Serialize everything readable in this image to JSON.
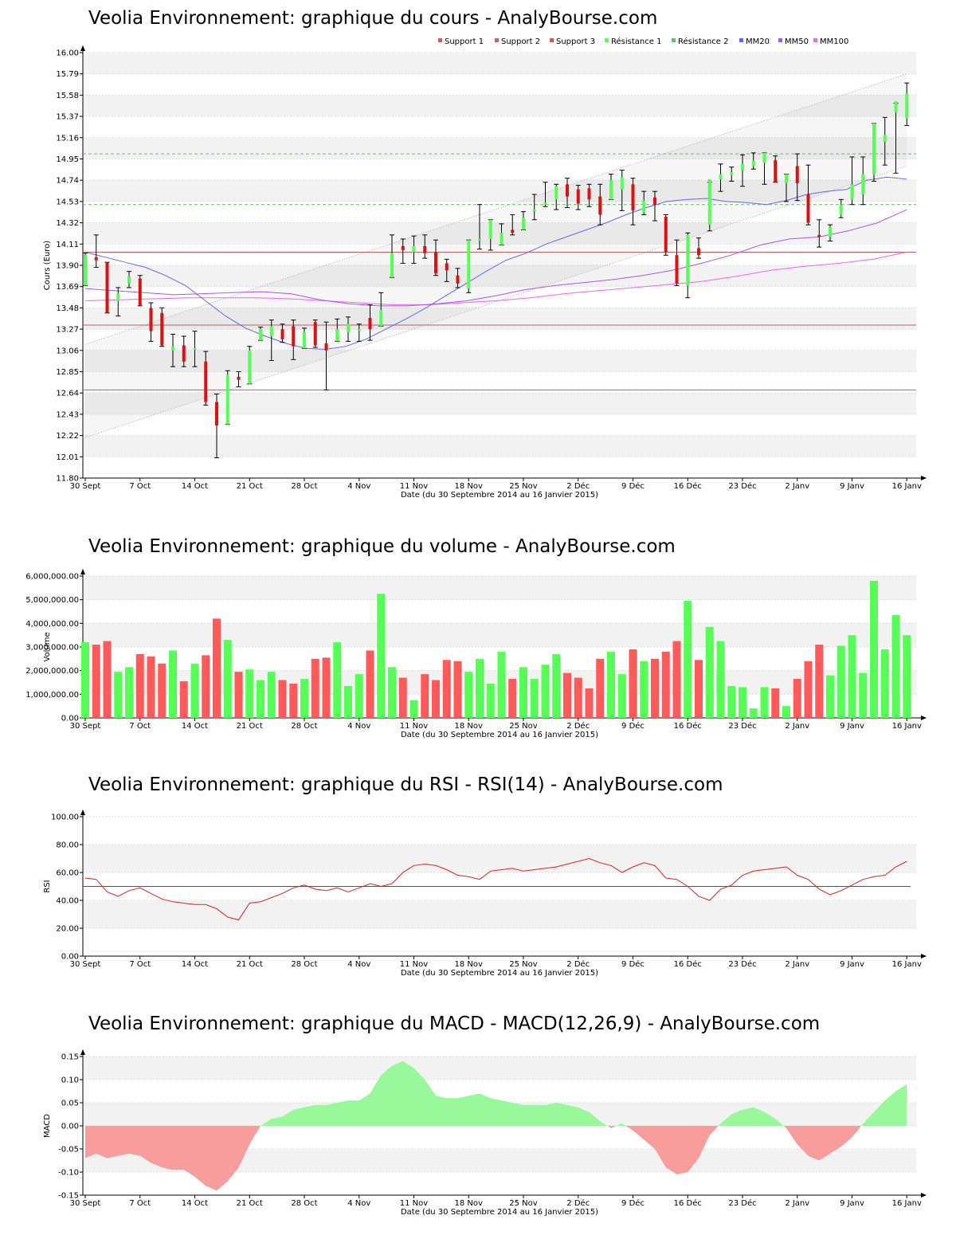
{
  "x_ticks": [
    "30 Sept",
    "7 Oct",
    "14 Oct",
    "21 Oct",
    "28 Oct",
    "4 Nov",
    "11 Nov",
    "18 Nov",
    "25 Nov",
    "2 Déc",
    "9 Déc",
    "16 Déc",
    "23 Déc",
    "2 Janv",
    "9 Janv",
    "16 Janv"
  ],
  "x_label": "Date (du 30 Septembre 2014 au 16 Janvier 2015)",
  "colors": {
    "up": "#55ff55",
    "down": "#ff5a5a",
    "support": "#c06060",
    "resistance": "#66bb66",
    "mm20": "#6666ee",
    "mm50": "#aa55ee",
    "mm100": "#ee66ee",
    "rsi": "#dd2222",
    "macd_pos": "#99f899",
    "macd_neg": "#f89c9c"
  },
  "chart_data": [
    {
      "type": "candlestick",
      "title": "Veolia Environnement: graphique du cours - AnalyBourse.com",
      "ylabel": "Cours (Euro)",
      "ylim": [
        11.8,
        16.0
      ],
      "y_ticks": [
        "11.80",
        "12.01",
        "12.22",
        "12.43",
        "12.64",
        "12.85",
        "13.06",
        "13.27",
        "13.48",
        "13.69",
        "13.90",
        "14.11",
        "14.32",
        "14.53",
        "14.74",
        "14.95",
        "15.16",
        "15.37",
        "15.58",
        "15.79",
        "16.00"
      ],
      "legend": [
        "Support 1",
        "Support 2",
        "Support 3",
        "Résistance 1",
        "Résistance 2",
        "MM20",
        "MM50",
        "MM100"
      ],
      "supports": [
        14.03,
        13.31,
        12.67
      ],
      "resistances": [
        15.0,
        14.5
      ],
      "ohlc": [
        [
          13.7,
          14.02,
          13.7,
          14.0
        ],
        [
          13.98,
          14.2,
          13.88,
          13.95
        ],
        [
          13.93,
          13.93,
          13.43,
          13.43
        ],
        [
          13.55,
          13.68,
          13.4,
          13.62
        ],
        [
          13.72,
          13.84,
          13.68,
          13.79
        ],
        [
          13.77,
          13.8,
          13.5,
          13.5
        ],
        [
          13.48,
          13.53,
          13.15,
          13.25
        ],
        [
          13.43,
          13.48,
          13.1,
          13.11
        ],
        [
          13.06,
          13.22,
          12.9,
          13.1
        ],
        [
          13.11,
          13.2,
          12.9,
          12.95
        ],
        [
          13.07,
          13.25,
          12.9,
          13.08
        ],
        [
          12.95,
          13.05,
          12.52,
          12.55
        ],
        [
          12.55,
          12.63,
          12.0,
          12.32
        ],
        [
          12.33,
          12.86,
          12.33,
          12.82
        ],
        [
          12.8,
          12.85,
          12.7,
          12.77
        ],
        [
          12.73,
          13.1,
          12.73,
          13.06
        ],
        [
          13.16,
          13.29,
          13.16,
          13.27
        ],
        [
          13.2,
          13.36,
          12.96,
          13.3
        ],
        [
          13.27,
          13.32,
          13.14,
          13.17
        ],
        [
          13.3,
          13.36,
          12.97,
          13.1
        ],
        [
          13.08,
          13.28,
          13.08,
          13.24
        ],
        [
          13.34,
          13.36,
          13.09,
          13.11
        ],
        [
          13.13,
          13.34,
          12.67,
          13.06
        ],
        [
          13.15,
          13.37,
          13.15,
          13.27
        ],
        [
          13.24,
          13.39,
          13.15,
          13.32
        ],
        [
          13.27,
          13.32,
          13.15,
          13.27
        ],
        [
          13.38,
          13.51,
          13.16,
          13.27
        ],
        [
          13.3,
          13.63,
          13.3,
          13.46
        ],
        [
          13.78,
          14.2,
          13.78,
          14.02
        ],
        [
          14.09,
          14.16,
          13.92,
          14.05
        ],
        [
          14.03,
          14.19,
          13.92,
          14.09
        ],
        [
          14.09,
          14.2,
          13.97,
          14.02
        ],
        [
          14.03,
          14.15,
          13.8,
          13.82
        ],
        [
          13.92,
          13.96,
          13.74,
          13.85
        ],
        [
          13.8,
          13.87,
          13.68,
          13.72
        ],
        [
          13.67,
          14.15,
          13.63,
          14.15
        ],
        [
          14.15,
          14.5,
          14.06,
          14.16
        ],
        [
          14.16,
          14.35,
          14.05,
          14.35
        ],
        [
          14.1,
          14.31,
          14.1,
          14.22
        ],
        [
          14.25,
          14.4,
          14.2,
          14.22
        ],
        [
          14.25,
          14.43,
          14.25,
          14.37
        ],
        [
          14.45,
          14.6,
          14.35,
          14.45
        ],
        [
          14.5,
          14.72,
          14.48,
          14.52
        ],
        [
          14.55,
          14.7,
          14.45,
          14.68
        ],
        [
          14.7,
          14.76,
          14.47,
          14.58
        ],
        [
          14.65,
          14.69,
          14.45,
          14.51
        ],
        [
          14.66,
          14.7,
          14.48,
          14.55
        ],
        [
          14.58,
          14.7,
          14.3,
          14.4
        ],
        [
          14.55,
          14.8,
          14.55,
          14.74
        ],
        [
          14.65,
          14.84,
          14.44,
          14.77
        ],
        [
          14.7,
          14.76,
          14.3,
          14.44
        ],
        [
          14.42,
          14.63,
          14.4,
          14.54
        ],
        [
          14.57,
          14.63,
          14.34,
          14.5
        ],
        [
          14.38,
          14.4,
          14.0,
          14.03
        ],
        [
          14.0,
          14.15,
          13.7,
          13.72
        ],
        [
          13.7,
          14.22,
          13.58,
          14.2
        ],
        [
          14.07,
          14.17,
          13.97,
          14.0
        ],
        [
          14.3,
          14.72,
          14.24,
          14.75
        ],
        [
          14.75,
          14.9,
          14.63,
          14.8
        ],
        [
          14.79,
          14.87,
          14.73,
          14.82
        ],
        [
          14.84,
          14.99,
          14.68,
          14.9
        ],
        [
          14.88,
          15.01,
          14.85,
          14.93
        ],
        [
          14.91,
          15.01,
          14.7,
          15.01
        ],
        [
          14.94,
          14.98,
          14.72,
          14.72
        ],
        [
          14.71,
          14.8,
          14.53,
          14.8
        ],
        [
          14.88,
          15.0,
          14.54,
          14.71
        ],
        [
          14.6,
          14.89,
          14.3,
          14.32
        ],
        [
          14.2,
          14.35,
          14.08,
          14.18
        ],
        [
          14.18,
          14.3,
          14.14,
          14.28
        ],
        [
          14.4,
          14.55,
          14.37,
          14.5
        ],
        [
          14.55,
          14.97,
          14.5,
          14.7
        ],
        [
          14.6,
          14.97,
          14.5,
          14.8
        ],
        [
          14.8,
          15.3,
          14.73,
          15.3
        ],
        [
          15.12,
          15.36,
          14.89,
          15.19
        ],
        [
          15.41,
          15.5,
          14.81,
          15.52
        ],
        [
          15.35,
          15.7,
          15.28,
          15.6
        ]
      ],
      "mm20": [
        14.03,
        13.98,
        13.93,
        13.88,
        13.8,
        13.7,
        13.55,
        13.4,
        13.28,
        13.2,
        13.13,
        13.08,
        13.07,
        13.1,
        13.17,
        13.27,
        13.37,
        13.48,
        13.6,
        13.72,
        13.84,
        13.95,
        14.02,
        14.11,
        14.18,
        14.25,
        14.32,
        14.4,
        14.47,
        14.53,
        14.55,
        14.56,
        14.53,
        14.52,
        14.5,
        14.54,
        14.6,
        14.63,
        14.65,
        14.74,
        14.77,
        14.75
      ],
      "mm50": [
        13.67,
        13.65,
        13.63,
        13.61,
        13.62,
        13.63,
        13.64,
        13.62,
        13.56,
        13.52,
        13.5,
        13.5,
        13.52,
        13.55,
        13.6,
        13.66,
        13.7,
        13.73,
        13.76,
        13.8,
        13.85,
        13.92,
        14.0,
        14.1,
        14.16,
        14.18,
        14.24,
        14.32,
        14.45
      ],
      "mm100": [
        13.55,
        13.56,
        13.57,
        13.58,
        13.58,
        13.58,
        13.57,
        13.55,
        13.53,
        13.51,
        13.51,
        13.53,
        13.55,
        13.58,
        13.62,
        13.65,
        13.68,
        13.71,
        13.74,
        13.79,
        13.85,
        13.89,
        13.92,
        13.96,
        14.03
      ]
    },
    {
      "type": "bar",
      "title": "Veolia Environnement: graphique du volume - AnalyBourse.com",
      "ylabel": "Volume",
      "ylim": [
        0,
        6000000
      ],
      "y_ticks": [
        "0.00",
        "1,000,000.00",
        "2,000,000.00",
        "3,000,000.00",
        "4,000,000.00",
        "5,000,000.00",
        "6,000,000.00"
      ],
      "values": [
        3200000,
        3100000,
        3250000,
        1950000,
        2150000,
        2700000,
        2600000,
        2300000,
        2850000,
        1550000,
        2300000,
        2650000,
        4200000,
        3300000,
        1950000,
        2050000,
        1600000,
        1950000,
        1600000,
        1450000,
        1650000,
        2500000,
        2550000,
        3200000,
        1350000,
        1850000,
        2850000,
        5250000,
        2150000,
        1700000,
        750000,
        1850000,
        1600000,
        2450000,
        2400000,
        1950000,
        2500000,
        1450000,
        2800000,
        1650000,
        2150000,
        1650000,
        2250000,
        2700000,
        1900000,
        1700000,
        1250000,
        2500000,
        2800000,
        1850000,
        2900000,
        2400000,
        2500000,
        2800000,
        3250000,
        4950000,
        2450000,
        3850000,
        3250000,
        1350000,
        1300000,
        400000,
        1300000,
        1250000,
        500000,
        1650000,
        2400000,
        3100000,
        1800000,
        3050000,
        3500000,
        1900000,
        5800000,
        2900000,
        4350000,
        3500000
      ]
    },
    {
      "type": "line",
      "title": "Veolia Environnement: graphique du RSI - RSI(14) - AnalyBourse.com",
      "ylabel": "RSI",
      "ylim": [
        0,
        100
      ],
      "y_ticks": [
        "0.00",
        "20.00",
        "40.00",
        "60.00",
        "80.00",
        "100.00"
      ],
      "reference": 50,
      "values": [
        56,
        55,
        46,
        43,
        47,
        49,
        45,
        41,
        39,
        38,
        37,
        37,
        34,
        28,
        26,
        38,
        39,
        42,
        45,
        49,
        51,
        48,
        47,
        49,
        46,
        49,
        52,
        50,
        52,
        60,
        65,
        66,
        65,
        62,
        58,
        57,
        55,
        61,
        62,
        63,
        61,
        62,
        63,
        64,
        66,
        68,
        70,
        67,
        65,
        60,
        64,
        67,
        65,
        56,
        55,
        50,
        43,
        40,
        48,
        51,
        58,
        61,
        62,
        63,
        64,
        58,
        55,
        48,
        44,
        47,
        51,
        55,
        57,
        58,
        64,
        68
      ]
    },
    {
      "type": "area",
      "title": "Veolia Environnement: graphique du MACD - MACD(12,26,9) - AnalyBourse.com",
      "ylabel": "MACD",
      "ylim": [
        -0.15,
        0.15
      ],
      "y_ticks": [
        "-0.15",
        "-0.10",
        "-0.05",
        "0.00",
        "0.05",
        "0.10",
        "0.15"
      ],
      "values": [
        -0.07,
        -0.06,
        -0.07,
        -0.065,
        -0.06,
        -0.065,
        -0.08,
        -0.09,
        -0.095,
        -0.095,
        -0.11,
        -0.13,
        -0.14,
        -0.12,
        -0.09,
        -0.04,
        0.0,
        0.015,
        0.02,
        0.035,
        0.04,
        0.045,
        0.045,
        0.05,
        0.055,
        0.055,
        0.07,
        0.11,
        0.13,
        0.14,
        0.125,
        0.1,
        0.065,
        0.06,
        0.06,
        0.065,
        0.07,
        0.06,
        0.055,
        0.05,
        0.045,
        0.045,
        0.045,
        0.05,
        0.045,
        0.04,
        0.03,
        0.01,
        -0.005,
        0.005,
        -0.01,
        -0.03,
        -0.05,
        -0.09,
        -0.105,
        -0.1,
        -0.07,
        -0.02,
        0.005,
        0.025,
        0.035,
        0.04,
        0.03,
        0.015,
        -0.005,
        -0.04,
        -0.065,
        -0.075,
        -0.06,
        -0.045,
        -0.025,
        0.005,
        0.03,
        0.055,
        0.075,
        0.09
      ]
    }
  ]
}
